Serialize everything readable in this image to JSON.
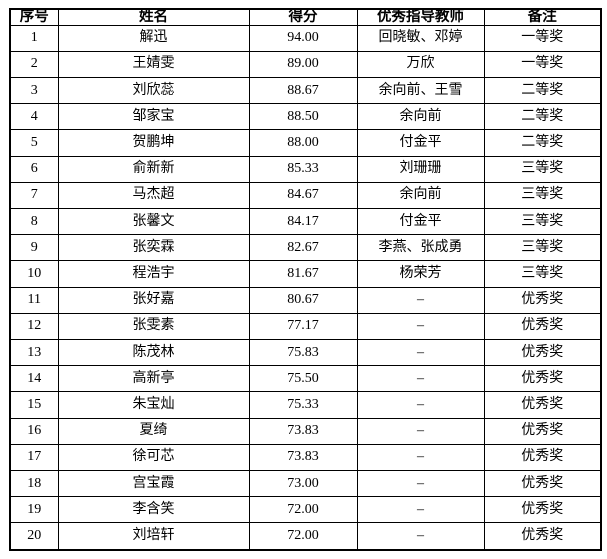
{
  "table": {
    "headers": [
      "序号",
      "姓名",
      "得分",
      "优秀指导教师",
      "备注"
    ],
    "rows": [
      [
        "1",
        "解迅",
        "94.00",
        "回晓敏、邓婷",
        "一等奖"
      ],
      [
        "2",
        "王婧雯",
        "89.00",
        "万欣",
        "一等奖"
      ],
      [
        "3",
        "刘欣蕊",
        "88.67",
        "余向前、王雪",
        "二等奖"
      ],
      [
        "4",
        "邹家宝",
        "88.50",
        "余向前",
        "二等奖"
      ],
      [
        "5",
        "贺鹏坤",
        "88.00",
        "付金平",
        "二等奖"
      ],
      [
        "6",
        "俞新新",
        "85.33",
        "刘珊珊",
        "三等奖"
      ],
      [
        "7",
        "马杰超",
        "84.67",
        "余向前",
        "三等奖"
      ],
      [
        "8",
        "张馨文",
        "84.17",
        "付金平",
        "三等奖"
      ],
      [
        "9",
        "张奕霖",
        "82.67",
        "李燕、张成勇",
        "三等奖"
      ],
      [
        "10",
        "程浩宇",
        "81.67",
        "杨荣芳",
        "三等奖"
      ],
      [
        "11",
        "张好嘉",
        "80.67",
        "–",
        "优秀奖"
      ],
      [
        "12",
        "张雯素",
        "77.17",
        "–",
        "优秀奖"
      ],
      [
        "13",
        "陈茂林",
        "75.83",
        "–",
        "优秀奖"
      ],
      [
        "14",
        "高新亭",
        "75.50",
        "–",
        "优秀奖"
      ],
      [
        "15",
        "朱宝灿",
        "75.33",
        "–",
        "优秀奖"
      ],
      [
        "16",
        "夏绮",
        "73.83",
        "–",
        "优秀奖"
      ],
      [
        "17",
        "徐可芯",
        "73.83",
        "–",
        "优秀奖"
      ],
      [
        "18",
        "宫宝霞",
        "73.00",
        "–",
        "优秀奖"
      ],
      [
        "19",
        "李含笑",
        "72.00",
        "–",
        "优秀奖"
      ],
      [
        "20",
        "刘培轩",
        "72.00",
        "–",
        "优秀奖"
      ]
    ]
  }
}
